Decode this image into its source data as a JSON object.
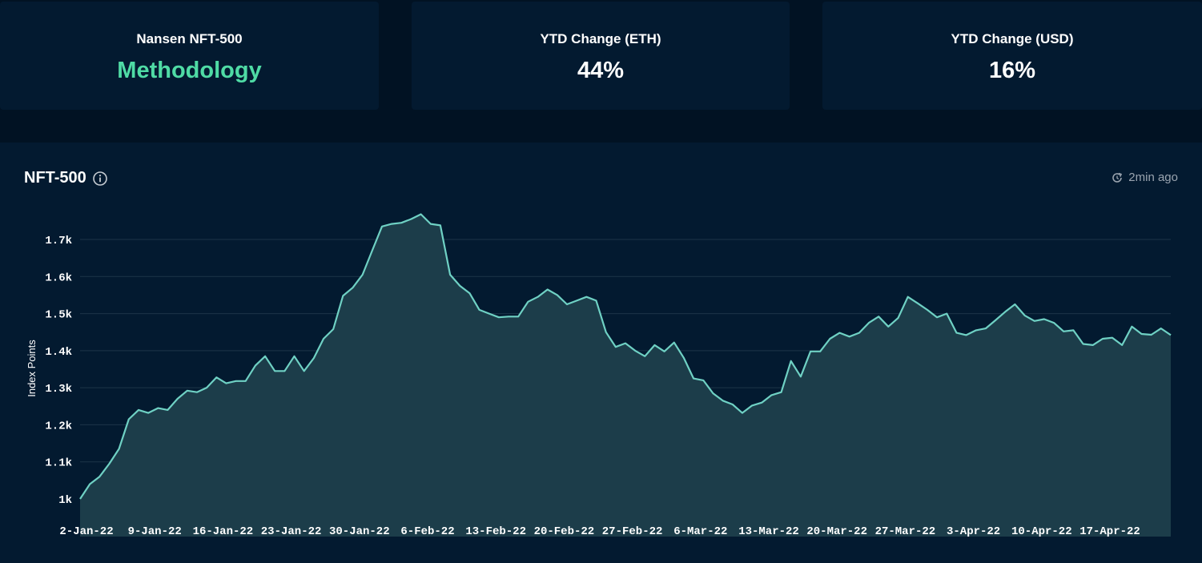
{
  "stats": [
    {
      "label": "Nansen NFT-500",
      "value": "Methodology"
    },
    {
      "label": "YTD Change (ETH)",
      "value": "44%"
    },
    {
      "label": "YTD Change (USD)",
      "value": "16%"
    }
  ],
  "panel": {
    "title": "NFT-500",
    "updated": "2min ago",
    "info_icon": "info-icon",
    "refresh_icon": "refresh-icon"
  },
  "colors": {
    "line": "#6fd1c4",
    "area": "#1c3d4a",
    "accent": "#4fdba5"
  },
  "chart_data": {
    "type": "area",
    "title": "",
    "xlabel": "",
    "ylabel": "Index Points",
    "ylim": [
      1000,
      1800
    ],
    "yticks": [
      1000,
      1100,
      1200,
      1300,
      1400,
      1500,
      1600,
      1700
    ],
    "ytick_labels": [
      "1k",
      "1.1k",
      "1.2k",
      "1.3k",
      "1.4k",
      "1.5k",
      "1.6k",
      "1.7k"
    ],
    "xticks": [
      "2-Jan-22",
      "9-Jan-22",
      "16-Jan-22",
      "23-Jan-22",
      "30-Jan-22",
      "6-Feb-22",
      "13-Feb-22",
      "20-Feb-22",
      "27-Feb-22",
      "6-Mar-22",
      "13-Mar-22",
      "20-Mar-22",
      "27-Mar-22",
      "3-Apr-22",
      "10-Apr-22",
      "17-Apr-22"
    ],
    "x_start": "2-Jan-22",
    "x_end": "23-Apr-22",
    "grid": true,
    "series": [
      {
        "values": [
          1000,
          1040,
          1060,
          1095,
          1135,
          1215,
          1240,
          1232,
          1245,
          1240,
          1270,
          1292,
          1288,
          1300,
          1328,
          1312,
          1318,
          1318,
          1360,
          1385,
          1345,
          1345,
          1385,
          1345,
          1380,
          1432,
          1458,
          1548,
          1570,
          1605,
          1670,
          1735,
          1742,
          1745,
          1755,
          1768,
          1742,
          1738,
          1605,
          1575,
          1555,
          1510,
          1500,
          1490,
          1492,
          1492,
          1532,
          1545,
          1565,
          1550,
          1525,
          1535,
          1545,
          1535,
          1450,
          1410,
          1420,
          1400,
          1385,
          1415,
          1398,
          1422,
          1380,
          1325,
          1320,
          1285,
          1265,
          1255,
          1232,
          1252,
          1260,
          1280,
          1288,
          1372,
          1330,
          1398,
          1398,
          1432,
          1448,
          1438,
          1448,
          1475,
          1492,
          1465,
          1488,
          1545,
          1528,
          1510,
          1490,
          1500,
          1448,
          1442,
          1455,
          1460,
          1482,
          1505,
          1525,
          1495,
          1480,
          1485,
          1475,
          1452,
          1455,
          1418,
          1415,
          1432,
          1435,
          1415,
          1465,
          1445,
          1443,
          1460,
          1442
        ]
      }
    ]
  }
}
